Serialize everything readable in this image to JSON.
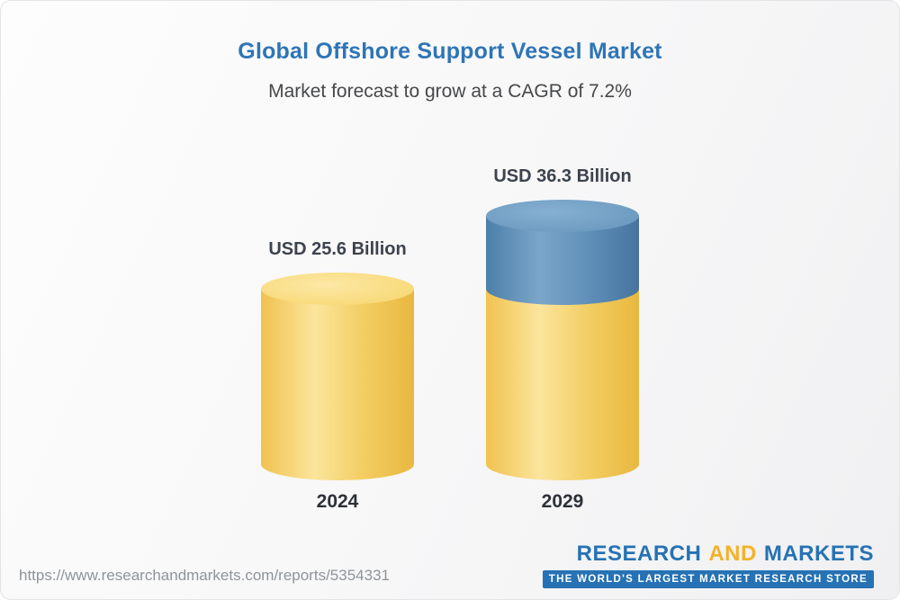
{
  "header": {
    "title": "Global Offshore Support Vessel Market",
    "title_color": "#2e75b6",
    "subtitle": "Market forecast to grow at a CAGR of 7.2%"
  },
  "chart_data": {
    "type": "bar",
    "style": "3d-cylinder",
    "title": "Global Offshore Support Vessel Market",
    "subtitle": "Market forecast to grow at a CAGR of 7.2%",
    "cagr": "7.2%",
    "unit": "USD Billion",
    "categories": [
      "2024",
      "2029"
    ],
    "values": [
      25.6,
      36.3
    ],
    "value_labels": [
      "USD 25.6 Billion",
      "USD 36.3 Billion"
    ],
    "legend": "none",
    "grid": false,
    "bars": [
      {
        "category": "2024",
        "label": "USD 25.6 Billion",
        "segments": [
          {
            "value": 25.6,
            "color": "yellow"
          }
        ]
      },
      {
        "category": "2029",
        "label": "USD 36.3 Billion",
        "segments": [
          {
            "value": 25.6,
            "color": "yellow"
          },
          {
            "value": 10.7,
            "color": "blue"
          }
        ]
      }
    ],
    "colors": {
      "yellow": {
        "stops": [
          [
            "#f0c250",
            "0%"
          ],
          [
            "#fbe59c",
            "35%"
          ],
          [
            "#f2cb5e",
            "70%"
          ],
          [
            "#e8b840",
            "100%"
          ]
        ],
        "cap": "#f8da79",
        "cap_hi": "#fce8a6"
      },
      "blue": {
        "stops": [
          [
            "#4d7fa9",
            "0%"
          ],
          [
            "#7ba6c9",
            "35%"
          ],
          [
            "#5d8db6",
            "70%"
          ],
          [
            "#46749e",
            "100%"
          ]
        ],
        "cap": "#6d9bc0",
        "cap_hi": "#86b0d2"
      }
    }
  },
  "footer": {
    "url": "https://www.researchandmarkets.com/reports/5354331",
    "logo": {
      "part1": "RESEARCH",
      "part2": "AND",
      "part3": "MARKETS",
      "tagline": "THE WORLD'S LARGEST MARKET RESEARCH STORE"
    },
    "colors": {
      "blue": "#2672b4",
      "yellow": "#f3b229"
    }
  }
}
